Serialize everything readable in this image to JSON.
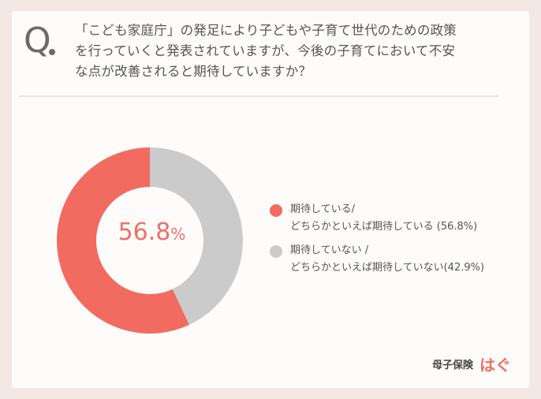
{
  "question": {
    "marker": "Q",
    "lines": [
      "「こども家庭庁」の発足により子どもや子育て世代のための政策",
      "を行っていくと発表されていますが、今後の子育てにおいて不安",
      "な点が改善されると期待していますか？"
    ]
  },
  "chart_data": {
    "type": "pie",
    "style": "donut",
    "slices": [
      {
        "label_line1": "期待している/",
        "label_line2": "どちらかといえば期待している (56.8%)",
        "value": 56.8,
        "color": "#f26b61"
      },
      {
        "label_line1": "期待していない /",
        "label_line2": "どちらかといえば期待していない(42.9%)",
        "value": 42.9,
        "color": "#cbcbcb"
      }
    ],
    "center_value": "56.8",
    "center_unit": "%",
    "legend_position": "right"
  },
  "brand": {
    "name": "母子保険",
    "logo": "はぐ"
  }
}
